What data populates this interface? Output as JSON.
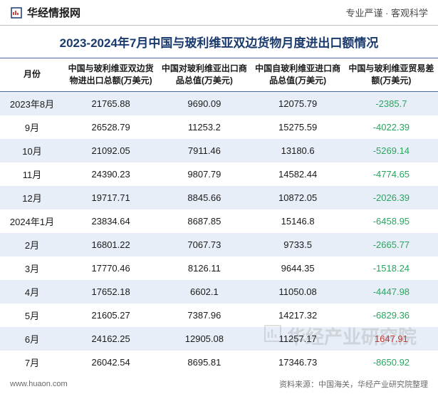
{
  "header": {
    "logo_text": "华经情报网",
    "right_text": "专业严谨 · 客观科学"
  },
  "title": "2023-2024年7月中国与玻利维亚双边货物月度进出口额情况",
  "table": {
    "columns": [
      "月份",
      "中国与玻利维亚双边货物进出口总额(万美元)",
      "中国对玻利维亚出口商品总值(万美元)",
      "中国自玻利维亚进口商品总值(万美元)",
      "中国与玻利维亚贸易差额(万美元)"
    ],
    "rows": [
      {
        "month": "2023年8月",
        "total": "21765.88",
        "export": "9690.09",
        "import": "12075.79",
        "balance": "-2385.7",
        "neg": true
      },
      {
        "month": "9月",
        "total": "26528.79",
        "export": "11253.2",
        "import": "15275.59",
        "balance": "-4022.39",
        "neg": true
      },
      {
        "month": "10月",
        "total": "21092.05",
        "export": "7911.46",
        "import": "13180.6",
        "balance": "-5269.14",
        "neg": true
      },
      {
        "month": "11月",
        "total": "24390.23",
        "export": "9807.79",
        "import": "14582.44",
        "balance": "-4774.65",
        "neg": true
      },
      {
        "month": "12月",
        "total": "19717.71",
        "export": "8845.66",
        "import": "10872.05",
        "balance": "-2026.39",
        "neg": true
      },
      {
        "month": "2024年1月",
        "total": "23834.64",
        "export": "8687.85",
        "import": "15146.8",
        "balance": "-6458.95",
        "neg": true
      },
      {
        "month": "2月",
        "total": "16801.22",
        "export": "7067.73",
        "import": "9733.5",
        "balance": "-2665.77",
        "neg": true
      },
      {
        "month": "3月",
        "total": "17770.46",
        "export": "8126.11",
        "import": "9644.35",
        "balance": "-1518.24",
        "neg": true
      },
      {
        "month": "4月",
        "total": "17652.18",
        "export": "6602.1",
        "import": "11050.08",
        "balance": "-4447.98",
        "neg": true
      },
      {
        "month": "5月",
        "total": "21605.27",
        "export": "7387.96",
        "import": "14217.32",
        "balance": "-6829.36",
        "neg": true
      },
      {
        "month": "6月",
        "total": "24162.25",
        "export": "12905.08",
        "import": "11257.17",
        "balance": "1647.91",
        "neg": false
      },
      {
        "month": "7月",
        "total": "26042.54",
        "export": "8695.81",
        "import": "17346.73",
        "balance": "-8650.92",
        "neg": true
      }
    ]
  },
  "footer": {
    "left": "www.huaon.com",
    "right": "资料来源：中国海关，华经产业研究院整理"
  },
  "watermark": "华经产业研究院",
  "colors": {
    "header_border": "#c0c0c0",
    "title_color": "#1a3a6e",
    "table_border": "#4a6a9a",
    "row_odd_bg": "#e8eef7",
    "row_even_bg": "#ffffff",
    "negative_color": "#2aa560",
    "positive_color": "#c9342a",
    "text_color": "#1a1a1a",
    "footer_color": "#6a6a6a"
  }
}
